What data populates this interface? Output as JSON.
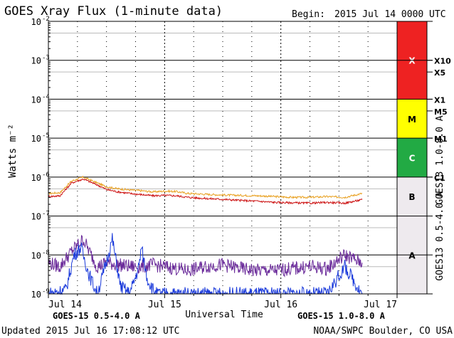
{
  "chart_data": {
    "type": "line",
    "title": "GOES Xray Flux (1-minute data)",
    "begin_label": "Begin:",
    "begin_value": "2015 Jul 14 0000 UTC",
    "ylabel": "Watts m⁻²",
    "xlabel": "Universal Time",
    "y_scale": "log",
    "ylim": [
      1e-09,
      0.01
    ],
    "x_unit": "days since Jul 14 0000 UTC",
    "xlim": [
      0,
      3
    ],
    "x_ticks": [
      {
        "x": 0,
        "label": "Jul 14"
      },
      {
        "x": 1,
        "label": "Jul 15"
      },
      {
        "x": 2,
        "label": "Jul 16"
      },
      {
        "x": 3,
        "label": "Jul 17"
      }
    ],
    "y_ticks": [
      {
        "exp": -2,
        "label": "10",
        "sup": "-2"
      },
      {
        "exp": -3,
        "label": "10",
        "sup": "-3"
      },
      {
        "exp": -4,
        "label": "10",
        "sup": "-4"
      },
      {
        "exp": -5,
        "label": "10",
        "sup": "-5"
      },
      {
        "exp": -6,
        "label": "10",
        "sup": "-6"
      },
      {
        "exp": -7,
        "label": "10",
        "sup": "-7"
      },
      {
        "exp": -8,
        "label": "10",
        "sup": "-8"
      },
      {
        "exp": -9,
        "label": "10",
        "sup": "-9"
      }
    ],
    "flare_classes": [
      {
        "label": "X",
        "from": -4,
        "to": -2,
        "color": "#ee2222"
      },
      {
        "label": "M",
        "from": -5,
        "to": -4,
        "color": "#ffff00"
      },
      {
        "label": "C",
        "from": -6,
        "to": -5,
        "color": "#22aa44"
      },
      {
        "label": "B",
        "from": -7,
        "to": -6,
        "color": "#eeeaee"
      },
      {
        "label": "A",
        "from": -9,
        "to": -7,
        "color": "#eeeaee"
      }
    ],
    "class_ticks": [
      {
        "label": "X10",
        "exp": -3
      },
      {
        "label": "X5",
        "exp": -3.301
      },
      {
        "label": "X1",
        "exp": -4
      },
      {
        "label": "M5",
        "exp": -4.301
      },
      {
        "label": "M1",
        "exp": -5
      },
      {
        "label": "C1",
        "exp": -6
      }
    ],
    "right_axis_labels": [
      {
        "text": "GOES13 1.0-8.0 A",
        "color": "#e8a020"
      },
      {
        "text": "GOES13 0.5-4.0 A",
        "color": "#7a3aa0"
      }
    ],
    "legend": [
      {
        "text": "GOES-15 0.5-4.0 A",
        "color": "#1a3adb"
      },
      {
        "text": "GOES-15 1.0-8.0 A",
        "color": "#ee2222"
      }
    ],
    "series": [
      {
        "name": "GOES13 1.0-8.0 A",
        "color": "#e8a020",
        "x": [
          0,
          0.1,
          0.2,
          0.3,
          0.42,
          0.5,
          0.6,
          0.7,
          0.8,
          0.9,
          1.0,
          1.1,
          1.2,
          1.35,
          1.5,
          1.65,
          1.8,
          1.95,
          2.1,
          2.25,
          2.4,
          2.55,
          2.7
        ],
        "y": [
          -6.42,
          -6.4,
          -6.1,
          -6.0,
          -6.15,
          -6.25,
          -6.3,
          -6.33,
          -6.35,
          -6.38,
          -6.36,
          -6.37,
          -6.42,
          -6.44,
          -6.46,
          -6.47,
          -6.48,
          -6.5,
          -6.52,
          -6.52,
          -6.5,
          -6.52,
          -6.42
        ]
      },
      {
        "name": "GOES-15 1.0-8.0 A",
        "color": "#cc1111",
        "x": [
          0,
          0.1,
          0.2,
          0.3,
          0.42,
          0.5,
          0.6,
          0.7,
          0.8,
          0.9,
          1.0,
          1.1,
          1.2,
          1.35,
          1.5,
          1.65,
          1.8,
          1.95,
          2.1,
          2.25,
          2.4,
          2.55,
          2.7
        ],
        "y": [
          -6.5,
          -6.48,
          -6.15,
          -6.05,
          -6.2,
          -6.32,
          -6.38,
          -6.42,
          -6.45,
          -6.48,
          -6.47,
          -6.48,
          -6.52,
          -6.55,
          -6.57,
          -6.6,
          -6.62,
          -6.65,
          -6.66,
          -6.67,
          -6.65,
          -6.67,
          -6.58
        ]
      },
      {
        "name": "GOES13 0.5-4.0 A",
        "color": "#6a2a9a",
        "x": [
          0,
          0.1,
          0.2,
          0.3,
          0.42,
          0.5,
          0.6,
          0.7,
          0.8,
          0.9,
          1.0,
          1.1,
          1.2,
          1.35,
          1.5,
          1.65,
          1.8,
          1.95,
          2.1,
          2.25,
          2.4,
          2.55,
          2.7
        ],
        "y": [
          -8.2,
          -8.3,
          -7.9,
          -7.6,
          -8.3,
          -8.2,
          -8.25,
          -8.3,
          -8.3,
          -8.25,
          -8.3,
          -8.35,
          -8.4,
          -8.3,
          -8.25,
          -8.35,
          -8.4,
          -8.4,
          -8.35,
          -8.3,
          -8.35,
          -8.0,
          -8.2
        ]
      },
      {
        "name": "GOES-15 0.5-4.0 A",
        "color": "#1a3adb",
        "x": [
          0.0,
          0.15,
          0.22,
          0.28,
          0.35,
          0.42,
          0.47,
          0.55,
          0.62,
          0.7,
          0.78,
          0.8,
          0.85,
          0.92,
          1.0,
          1.2,
          1.4,
          1.6,
          1.8,
          2.0,
          2.2,
          2.4,
          2.55,
          2.7
        ],
        "y": [
          -9.0,
          -8.9,
          -8.0,
          -7.8,
          -8.5,
          -9.0,
          -8.5,
          -7.6,
          -8.8,
          -9.0,
          -8.3,
          -7.8,
          -8.6,
          -9.0,
          -9.0,
          -9.0,
          -9.0,
          -9.0,
          -9.0,
          -9.0,
          -9.0,
          -9.0,
          -8.3,
          -9.0
        ]
      }
    ],
    "grid": true
  },
  "footer": {
    "updated": "Updated 2015 Jul 16 17:08:12 UTC",
    "credit": "NOAA/SWPC Boulder, CO USA"
  }
}
